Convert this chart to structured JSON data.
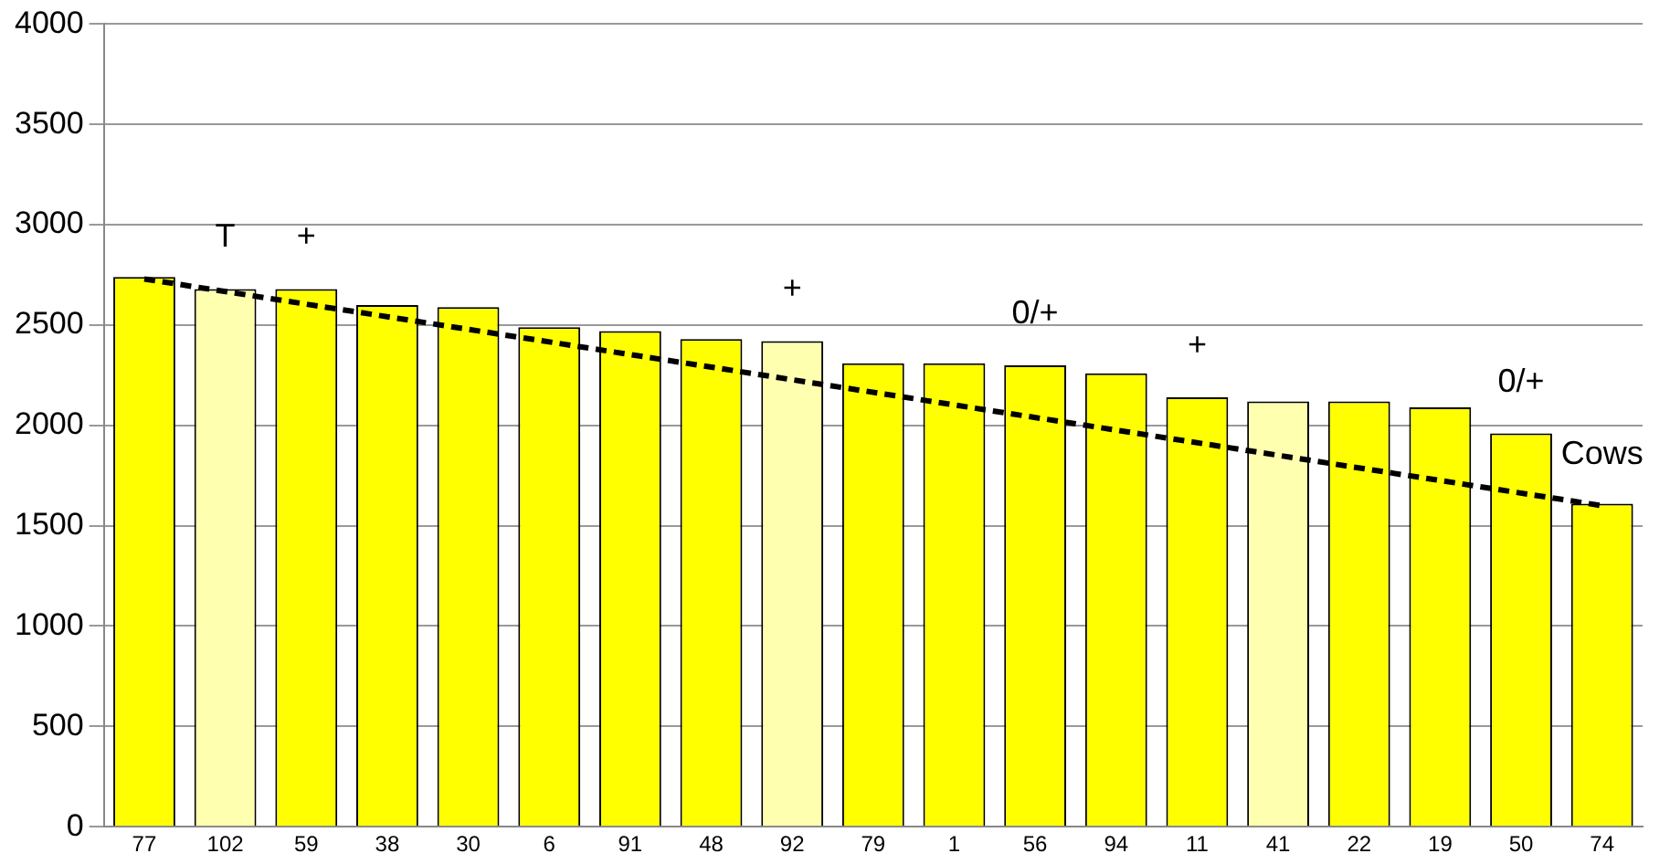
{
  "chart_data": {
    "type": "bar",
    "categories": [
      "77",
      "102",
      "59",
      "38",
      "30",
      "6",
      "91",
      "48",
      "92",
      "79",
      "1",
      "56",
      "94",
      "11",
      "41",
      "22",
      "19",
      "50",
      "74"
    ],
    "series": [
      {
        "colors": [
          "#ffff00",
          "#ffffb0",
          "#ffff00",
          "#ffff00",
          "#ffff00",
          "#ffff00",
          "#ffff00",
          "#ffff00",
          "#ffffb0",
          "#ffff00",
          "#ffff00",
          "#ffff00",
          "#ffff00",
          "#ffff00",
          "#ffffb0",
          "#ffff00",
          "#ffff00",
          "#ffff00",
          "#ffff00"
        ],
        "values": [
          2740,
          2680,
          2680,
          2600,
          2590,
          2490,
          2470,
          2430,
          2420,
          2310,
          2310,
          2300,
          2260,
          2140,
          2120,
          2120,
          2090,
          1960,
          1610
        ]
      },
      {
        "type": "line",
        "color": "#000000",
        "line_style": "dashed",
        "marker": "none",
        "x": [
          "77",
          "74"
        ],
        "values": [
          2730,
          1600
        ]
      }
    ],
    "ylim": [
      0,
      4000
    ],
    "yticks": [
      0,
      500,
      1000,
      1500,
      2000,
      2500,
      3000,
      3500,
      4000
    ],
    "grid": "y",
    "legend": false,
    "annotations": [
      {
        "text": "T",
        "x": "102",
        "y": 2680
      },
      {
        "text": "+",
        "x": "59",
        "y": 2680
      },
      {
        "text": "+",
        "x": "92",
        "y": 2420
      },
      {
        "text": "0/+",
        "x": "56",
        "y": 2300
      },
      {
        "text": "+",
        "x": "11",
        "y": 2140
      },
      {
        "text": "0/+",
        "x": "50",
        "y": 1960
      },
      {
        "text": "Cows",
        "x": "74",
        "y": 1600
      }
    ]
  }
}
